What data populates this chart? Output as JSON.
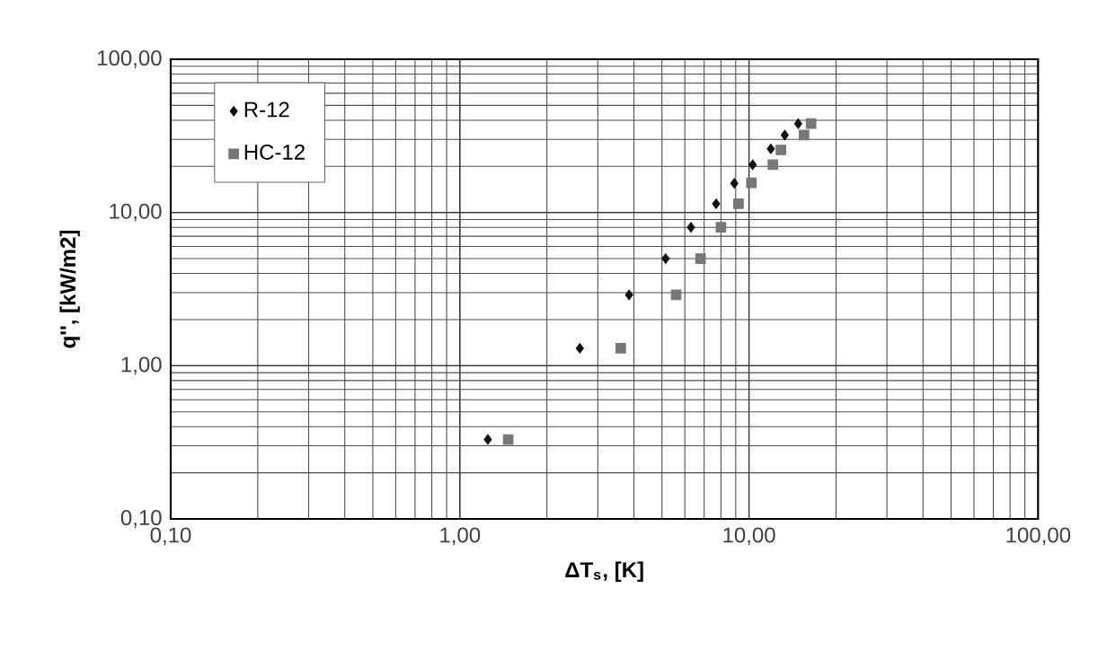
{
  "chart_data": {
    "type": "scatter",
    "xlabel": "ΔT$_{s}$, [K]",
    "ylabel": "q'', [kW/m2]",
    "log": "xy",
    "grid": true,
    "legend": "top left",
    "xlim": [
      0.1,
      100
    ],
    "ylim": [
      0.1,
      100
    ],
    "xticks": [
      {
        "value": 0.1,
        "label": "0,10"
      },
      {
        "value": 1,
        "label": "1,00"
      },
      {
        "value": 10,
        "label": "10,00"
      },
      {
        "value": 100,
        "label": "100,00"
      }
    ],
    "yticks": [
      {
        "value": 0.1,
        "label": "0,10"
      },
      {
        "value": 1,
        "label": "1,00"
      },
      {
        "value": 10,
        "label": "10,00"
      },
      {
        "value": 100,
        "label": "100,00"
      }
    ],
    "series": [
      {
        "name": "R-12",
        "color": "#111111",
        "marker": "diamond",
        "x": [
          1.25,
          2.6,
          3.85,
          5.15,
          6.3,
          7.7,
          8.9,
          10.3,
          11.9,
          13.3,
          14.8
        ],
        "values": [
          0.33,
          1.3,
          2.9,
          5.0,
          8.0,
          11.4,
          15.5,
          20.5,
          26,
          32,
          38
        ]
      },
      {
        "name": "HC-12",
        "color": "#777777",
        "marker": "square",
        "x": [
          1.47,
          3.6,
          5.6,
          6.8,
          8.0,
          9.2,
          10.2,
          12.1,
          12.9,
          15.5,
          16.4
        ],
        "values": [
          0.33,
          1.3,
          2.9,
          5.0,
          8.0,
          11.4,
          15.6,
          20.5,
          25.6,
          32,
          38
        ]
      }
    ]
  }
}
